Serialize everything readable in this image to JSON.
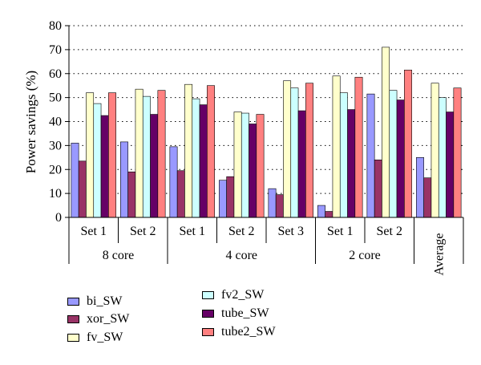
{
  "chart_data": {
    "type": "bar",
    "ylabel": "Power savings (%)",
    "xlabel": "",
    "ylim": [
      0,
      80
    ],
    "yticks": [
      0,
      10,
      20,
      30,
      40,
      50,
      60,
      70,
      80
    ],
    "grid": "horizontal dotted",
    "categories": [
      "Set 1",
      "Set 2",
      "Set 1",
      "Set 2",
      "Set 3",
      "Set 1",
      "Set 2",
      "Average"
    ],
    "groups": [
      {
        "label": "8 core",
        "span": 2
      },
      {
        "label": "4 core",
        "span": 3
      },
      {
        "label": "2 core",
        "span": 2
      },
      {
        "label": "",
        "span": 1
      }
    ],
    "series": [
      {
        "name": "bi_SW",
        "color": "#9999ff",
        "values": [
          31,
          31.5,
          29.5,
          15.5,
          12,
          5,
          51.5,
          25
        ]
      },
      {
        "name": "xor_SW",
        "color": "#993366",
        "values": [
          23.5,
          19,
          19.5,
          17,
          9.5,
          2.5,
          24,
          16.5
        ]
      },
      {
        "name": "fv_SW",
        "color": "#ffffcc",
        "values": [
          52,
          53.5,
          55.5,
          44,
          57,
          59,
          71,
          56
        ]
      },
      {
        "name": "fv2_SW",
        "color": "#ccffff",
        "values": [
          47.5,
          50.5,
          49.5,
          43.5,
          54,
          52,
          53,
          50
        ]
      },
      {
        "name": "tube_SW",
        "color": "#660066",
        "values": [
          42.5,
          43,
          47,
          39,
          44.5,
          45,
          49,
          44
        ]
      },
      {
        "name": "tube2_SW",
        "color": "#ff8080",
        "values": [
          52,
          53,
          55,
          43,
          56,
          58.5,
          61.5,
          54
        ]
      }
    ],
    "legend_placement": "bottom-left, two columns"
  }
}
